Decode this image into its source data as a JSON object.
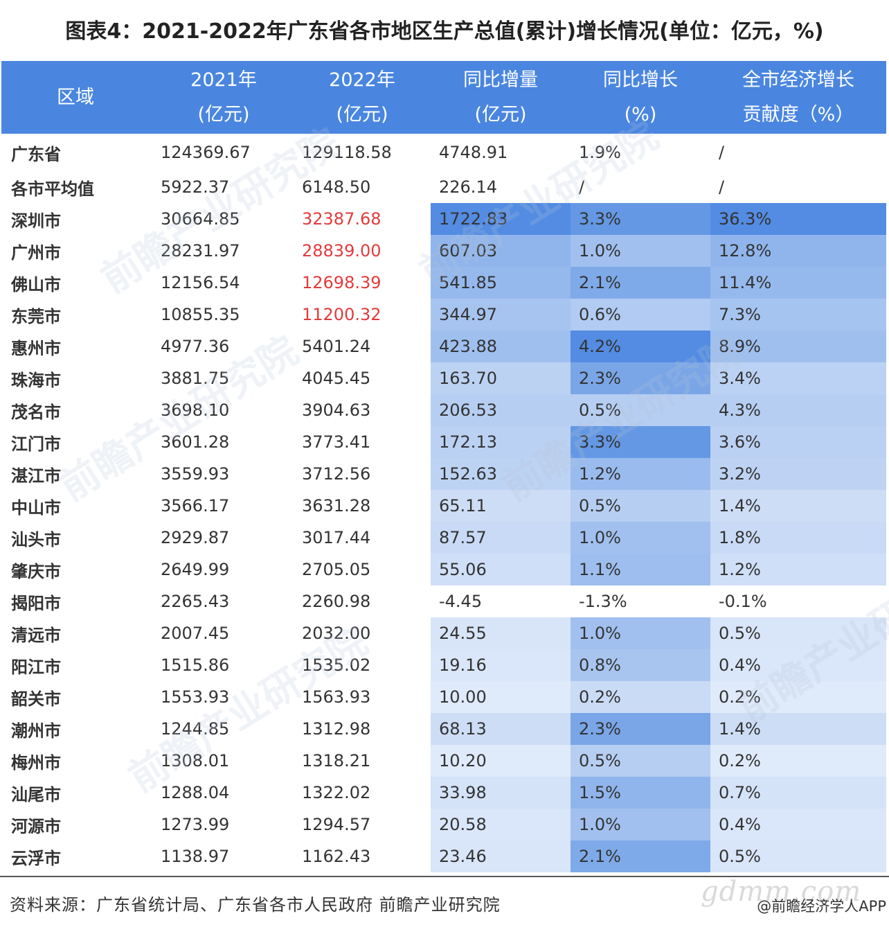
{
  "title": "图表4：2021-2022年广东省各市地区生产总值(累计)增长情况(单位：亿元，%)",
  "columns": [
    {
      "line1": "区域",
      "line2": ""
    },
    {
      "line1": "2021年",
      "line2": "(亿元)"
    },
    {
      "line1": "2022年",
      "line2": "(亿元)"
    },
    {
      "line1": "同比增量",
      "line2": "(亿元)"
    },
    {
      "line1": "同比增长",
      "line2": "(%)"
    },
    {
      "line1": "全市经济增长",
      "line2": "贡献度（%）"
    }
  ],
  "rows": [
    {
      "region": "广东省",
      "y2021": "124369.67",
      "y2022": "129118.58",
      "increase": "4748.91",
      "growth": "1.9%",
      "contribution": "/"
    },
    {
      "region": "各市平均值",
      "y2021": "5922.37",
      "y2022": "6148.50",
      "increase": "226.14",
      "growth": "/",
      "contribution": "/"
    },
    {
      "region": "深圳市",
      "y2021": "30664.85",
      "y2022": "32387.68",
      "increase": "1722.83",
      "growth": "3.3%",
      "contribution": "36.3%"
    },
    {
      "region": "广州市",
      "y2021": "28231.97",
      "y2022": "28839.00",
      "increase": "607.03",
      "growth": "1.0%",
      "contribution": "12.8%"
    },
    {
      "region": "佛山市",
      "y2021": "12156.54",
      "y2022": "12698.39",
      "increase": "541.85",
      "growth": "2.1%",
      "contribution": "11.4%"
    },
    {
      "region": "东莞市",
      "y2021": "10855.35",
      "y2022": "11200.32",
      "increase": "344.97",
      "growth": "0.6%",
      "contribution": "7.3%"
    },
    {
      "region": "惠州市",
      "y2021": "4977.36",
      "y2022": "5401.24",
      "increase": "423.88",
      "growth": "4.2%",
      "contribution": "8.9%"
    },
    {
      "region": "珠海市",
      "y2021": "3881.75",
      "y2022": "4045.45",
      "increase": "163.70",
      "growth": "2.3%",
      "contribution": "3.4%"
    },
    {
      "region": "茂名市",
      "y2021": "3698.10",
      "y2022": "3904.63",
      "increase": "206.53",
      "growth": "0.5%",
      "contribution": "4.3%"
    },
    {
      "region": "江门市",
      "y2021": "3601.28",
      "y2022": "3773.41",
      "increase": "172.13",
      "growth": "3.3%",
      "contribution": "3.6%"
    },
    {
      "region": "湛江市",
      "y2021": "3559.93",
      "y2022": "3712.56",
      "increase": "152.63",
      "growth": "1.2%",
      "contribution": "3.2%"
    },
    {
      "region": "中山市",
      "y2021": "3566.17",
      "y2022": "3631.28",
      "increase": "65.11",
      "growth": "0.5%",
      "contribution": "1.4%"
    },
    {
      "region": "汕头市",
      "y2021": "2929.87",
      "y2022": "3017.44",
      "increase": "87.57",
      "growth": "1.0%",
      "contribution": "1.8%"
    },
    {
      "region": "肇庆市",
      "y2021": "2649.99",
      "y2022": "2705.05",
      "increase": "55.06",
      "growth": "1.1%",
      "contribution": "1.2%"
    },
    {
      "region": "揭阳市",
      "y2021": "2265.43",
      "y2022": "2260.98",
      "increase": "-4.45",
      "growth": "-1.3%",
      "contribution": "-0.1%"
    },
    {
      "region": "清远市",
      "y2021": "2007.45",
      "y2022": "2032.00",
      "increase": "24.55",
      "growth": "1.0%",
      "contribution": "0.5%"
    },
    {
      "region": "阳江市",
      "y2021": "1515.86",
      "y2022": "1535.02",
      "increase": "19.16",
      "growth": "0.8%",
      "contribution": "0.4%"
    },
    {
      "region": "韶关市",
      "y2021": "1553.93",
      "y2022": "1563.93",
      "increase": "10.00",
      "growth": "0.2%",
      "contribution": "0.2%"
    },
    {
      "region": "潮州市",
      "y2021": "1244.85",
      "y2022": "1312.98",
      "increase": "68.13",
      "growth": "2.3%",
      "contribution": "1.4%"
    },
    {
      "region": "梅州市",
      "y2021": "1308.01",
      "y2022": "1318.21",
      "increase": "10.20",
      "growth": "0.5%",
      "contribution": "0.2%"
    },
    {
      "region": "汕尾市",
      "y2021": "1288.04",
      "y2022": "1322.02",
      "increase": "33.98",
      "growth": "1.5%",
      "contribution": "0.7%"
    },
    {
      "region": "河源市",
      "y2021": "1273.99",
      "y2022": "1294.57",
      "increase": "20.58",
      "growth": "1.0%",
      "contribution": "0.4%"
    },
    {
      "region": "云浮市",
      "y2021": "1138.97",
      "y2022": "1162.43",
      "increase": "23.46",
      "growth": "2.1%",
      "contribution": "0.5%"
    }
  ],
  "highlight": {
    "red_text_color": "#e23b3b",
    "red_rows_2022": [
      2,
      3,
      4,
      5
    ],
    "header_color": "#4a86e0",
    "heat_rgb": [
      74,
      134,
      224
    ],
    "heat_from_row": 2
  },
  "source": "资料来源：广东省统计局、广东省各市人民政府 前瞻产业研究院",
  "brand": "@前瞻经济学人APP",
  "site_mark": "gdmm.com",
  "watermark": "前瞻产业研究院"
}
